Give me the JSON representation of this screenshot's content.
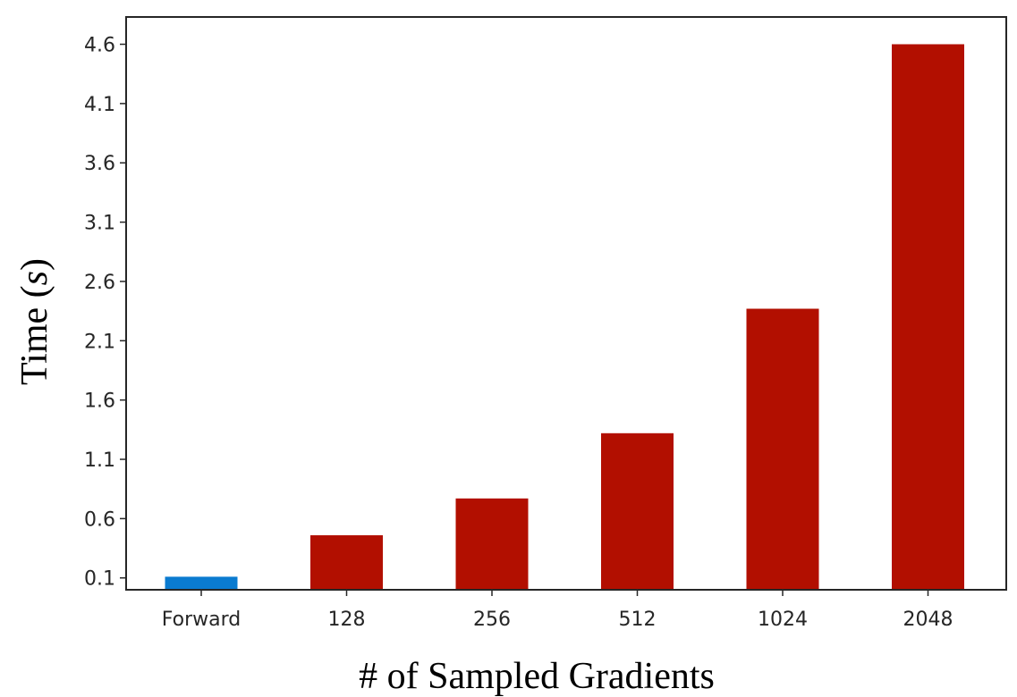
{
  "chart_data": {
    "type": "bar",
    "title": "",
    "xlabel": "# of Sampled Gradients",
    "ylabel_main": "Time (",
    "ylabel_var": "s",
    "ylabel_close": ")",
    "categories": [
      "Forward",
      "128",
      "256",
      "512",
      "1024",
      "2048"
    ],
    "values": [
      0.11,
      0.46,
      0.77,
      1.32,
      2.37,
      4.6
    ],
    "colors": [
      "#0a7bd0",
      "#b20f00",
      "#b20f00",
      "#b20f00",
      "#b20f00",
      "#b20f00"
    ],
    "yticks": [
      "0.1",
      "0.6",
      "1.1",
      "1.6",
      "2.1",
      "2.6",
      "3.1",
      "3.6",
      "4.1",
      "4.6"
    ],
    "ylim": [
      -0.0,
      4.83
    ],
    "grid": false,
    "legend": "none"
  }
}
